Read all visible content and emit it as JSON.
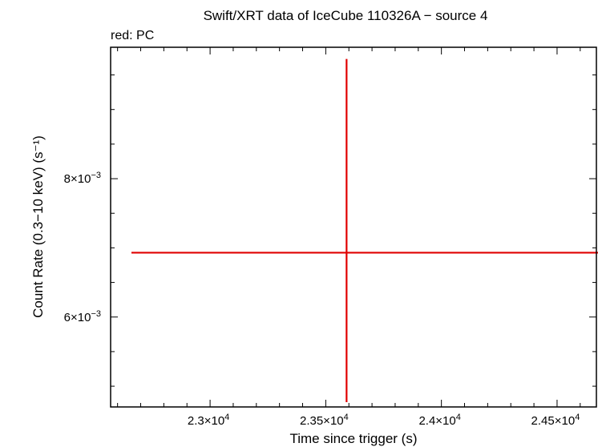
{
  "chart_data": {
    "type": "scatter",
    "title": "Swift/XRT data of IceCube 110326A − source 4",
    "subtitle": "red: PC",
    "xlabel": "Time since trigger (s)",
    "ylabel": "Count Rate (0.3−10 keV) (s⁻¹)",
    "xlim": [
      22570,
      24670
    ],
    "ylim": [
      0.0047,
      0.0099
    ],
    "x_ticks": [
      {
        "value": 23000,
        "mantissa": "2.3",
        "exponent": "4"
      },
      {
        "value": 23500,
        "mantissa": "2.35",
        "exponent": "4"
      },
      {
        "value": 24000,
        "mantissa": "2.4",
        "exponent": "4"
      },
      {
        "value": 24500,
        "mantissa": "2.45",
        "exponent": "4"
      }
    ],
    "y_ticks": [
      {
        "value": 0.006,
        "mantissa": "6",
        "exponent": "−3"
      },
      {
        "value": 0.008,
        "mantissa": "8",
        "exponent": "−3"
      }
    ],
    "series": [
      {
        "color": "#e00000",
        "points": [
          {
            "x": 23590,
            "y": 0.00693,
            "x_lo": 22660,
            "x_hi": 24690,
            "y_lo": 0.00477,
            "y_hi": 0.00973
          }
        ]
      }
    ]
  }
}
